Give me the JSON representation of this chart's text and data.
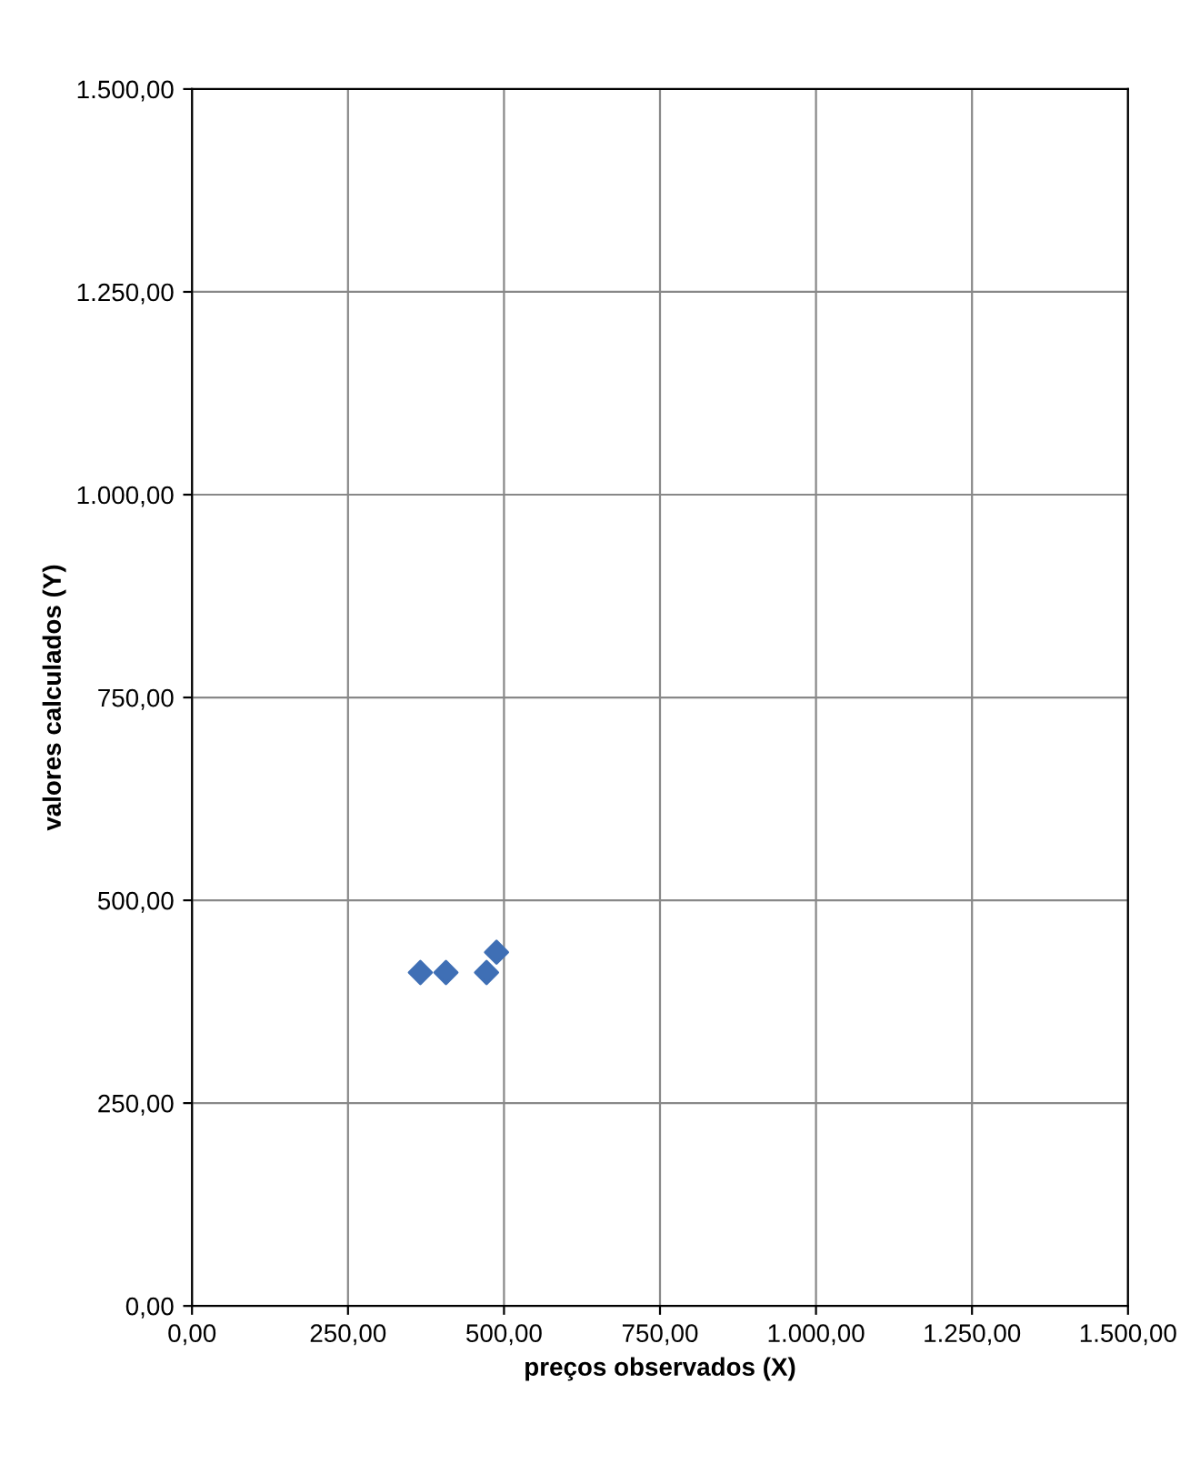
{
  "chart_data": {
    "type": "scatter",
    "xlabel": "preços observados (X)",
    "ylabel": "valores calculados (Y)",
    "x": [
      488,
      472,
      407,
      366
    ],
    "values": [
      436,
      411,
      411,
      411
    ],
    "color": "#3f6fb5",
    "marker": "diamond",
    "xlim": [
      0,
      1500
    ],
    "ylim": [
      0,
      1500
    ],
    "xticks": [
      {
        "value": 0,
        "label": "0,00"
      },
      {
        "value": 250,
        "label": "250,00"
      },
      {
        "value": 500,
        "label": "500,00"
      },
      {
        "value": 750,
        "label": "750,00"
      },
      {
        "value": 1000,
        "label": "1.000,00"
      },
      {
        "value": 1250,
        "label": "1.250,00"
      },
      {
        "value": 1500,
        "label": "1.500,00"
      }
    ],
    "yticks": [
      {
        "value": 0,
        "label": "0,00"
      },
      {
        "value": 250,
        "label": "250,00"
      },
      {
        "value": 500,
        "label": "500,00"
      },
      {
        "value": 750,
        "label": "750,00"
      },
      {
        "value": 1000,
        "label": "1.000,00"
      },
      {
        "value": 1250,
        "label": "1.250,00"
      },
      {
        "value": 1500,
        "label": "1.500,00"
      }
    ],
    "grid": true,
    "legend": false
  }
}
